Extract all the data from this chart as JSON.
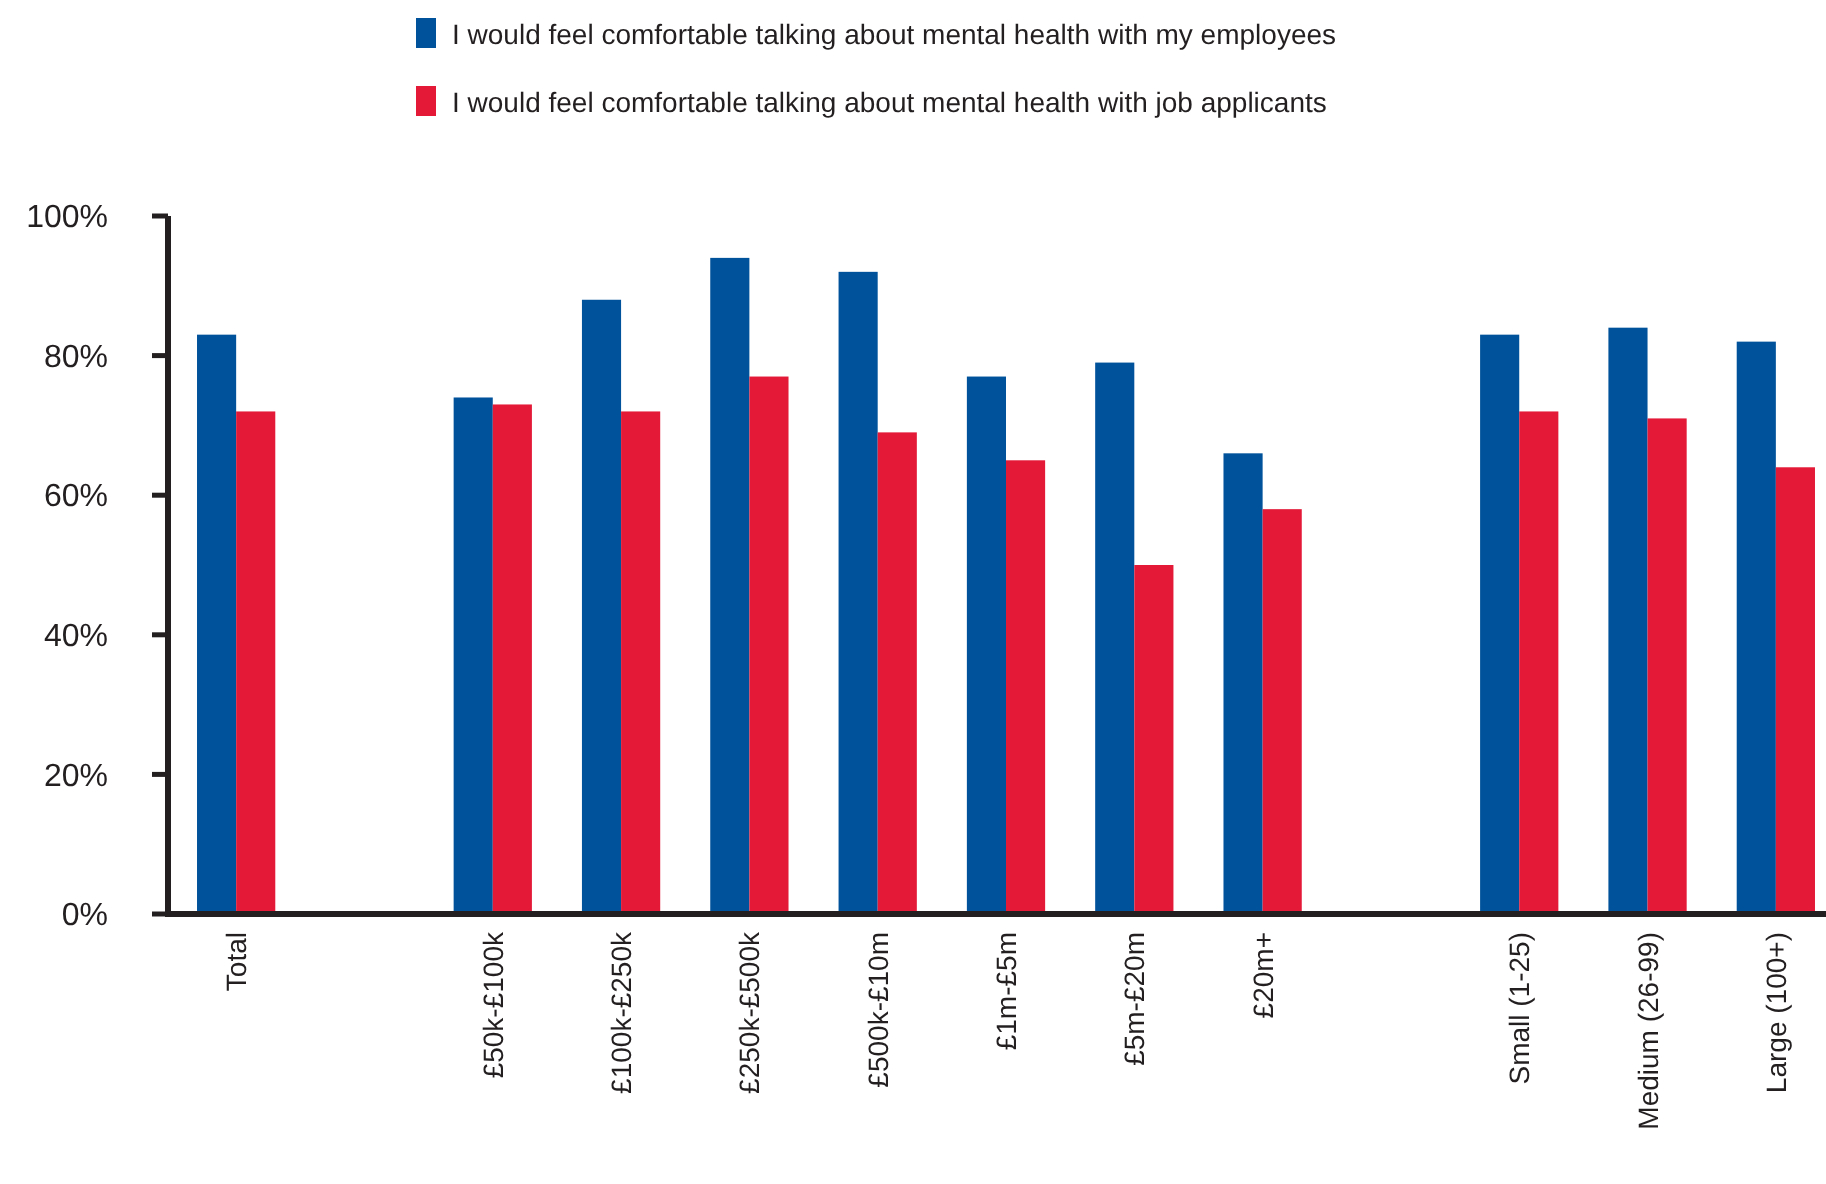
{
  "chart_data": {
    "type": "bar",
    "categories": [
      "Total",
      null,
      "£50k-£100k",
      "£100k-£250k",
      "£250k-£500k",
      "£500k-£10m",
      "£1m-£5m",
      "£5m-£20m",
      "£20m+",
      null,
      "Small (1-25)",
      "Medium (26-99)",
      "Large (100+)"
    ],
    "series": [
      {
        "name": "I would feel comfortable talking about mental health with my employees",
        "color": "#00529b",
        "values": [
          83,
          null,
          74,
          88,
          94,
          92,
          77,
          79,
          66,
          null,
          83,
          84,
          82
        ]
      },
      {
        "name": "I would feel comfortable talking about mental health with job applicants",
        "color": "#e31937",
        "values": [
          72,
          null,
          73,
          72,
          77,
          69,
          65,
          50,
          58,
          null,
          72,
          71,
          64
        ]
      }
    ],
    "ylim": [
      0,
      100
    ],
    "yticks": [
      {
        "value": 0,
        "label": "0%"
      },
      {
        "value": 20,
        "label": "20%"
      },
      {
        "value": 40,
        "label": "40%"
      },
      {
        "value": 60,
        "label": "60%"
      },
      {
        "value": 80,
        "label": "80%"
      },
      {
        "value": 100,
        "label": "100%"
      }
    ],
    "legend": "top"
  }
}
